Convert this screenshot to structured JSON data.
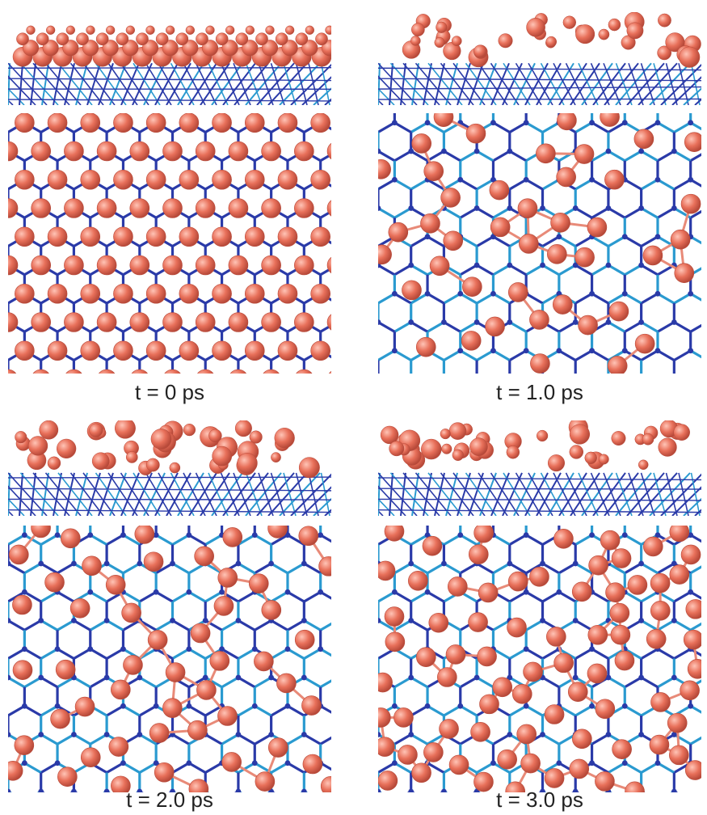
{
  "panels": [
    {
      "caption": "t = 0 ps",
      "ordered": true
    },
    {
      "caption": "t = 1.0 ps",
      "ordered": false
    },
    {
      "caption": "t = 2.0 ps",
      "ordered": false
    },
    {
      "caption": "t = 3.0 ps",
      "ordered": false
    }
  ],
  "colors": {
    "adatom": "#e8705a",
    "adatom_dark": "#b84a3a",
    "lattice_dark": "#2a3aa8",
    "lattice_light": "#2a9ad0",
    "bond": "#e88a78"
  }
}
